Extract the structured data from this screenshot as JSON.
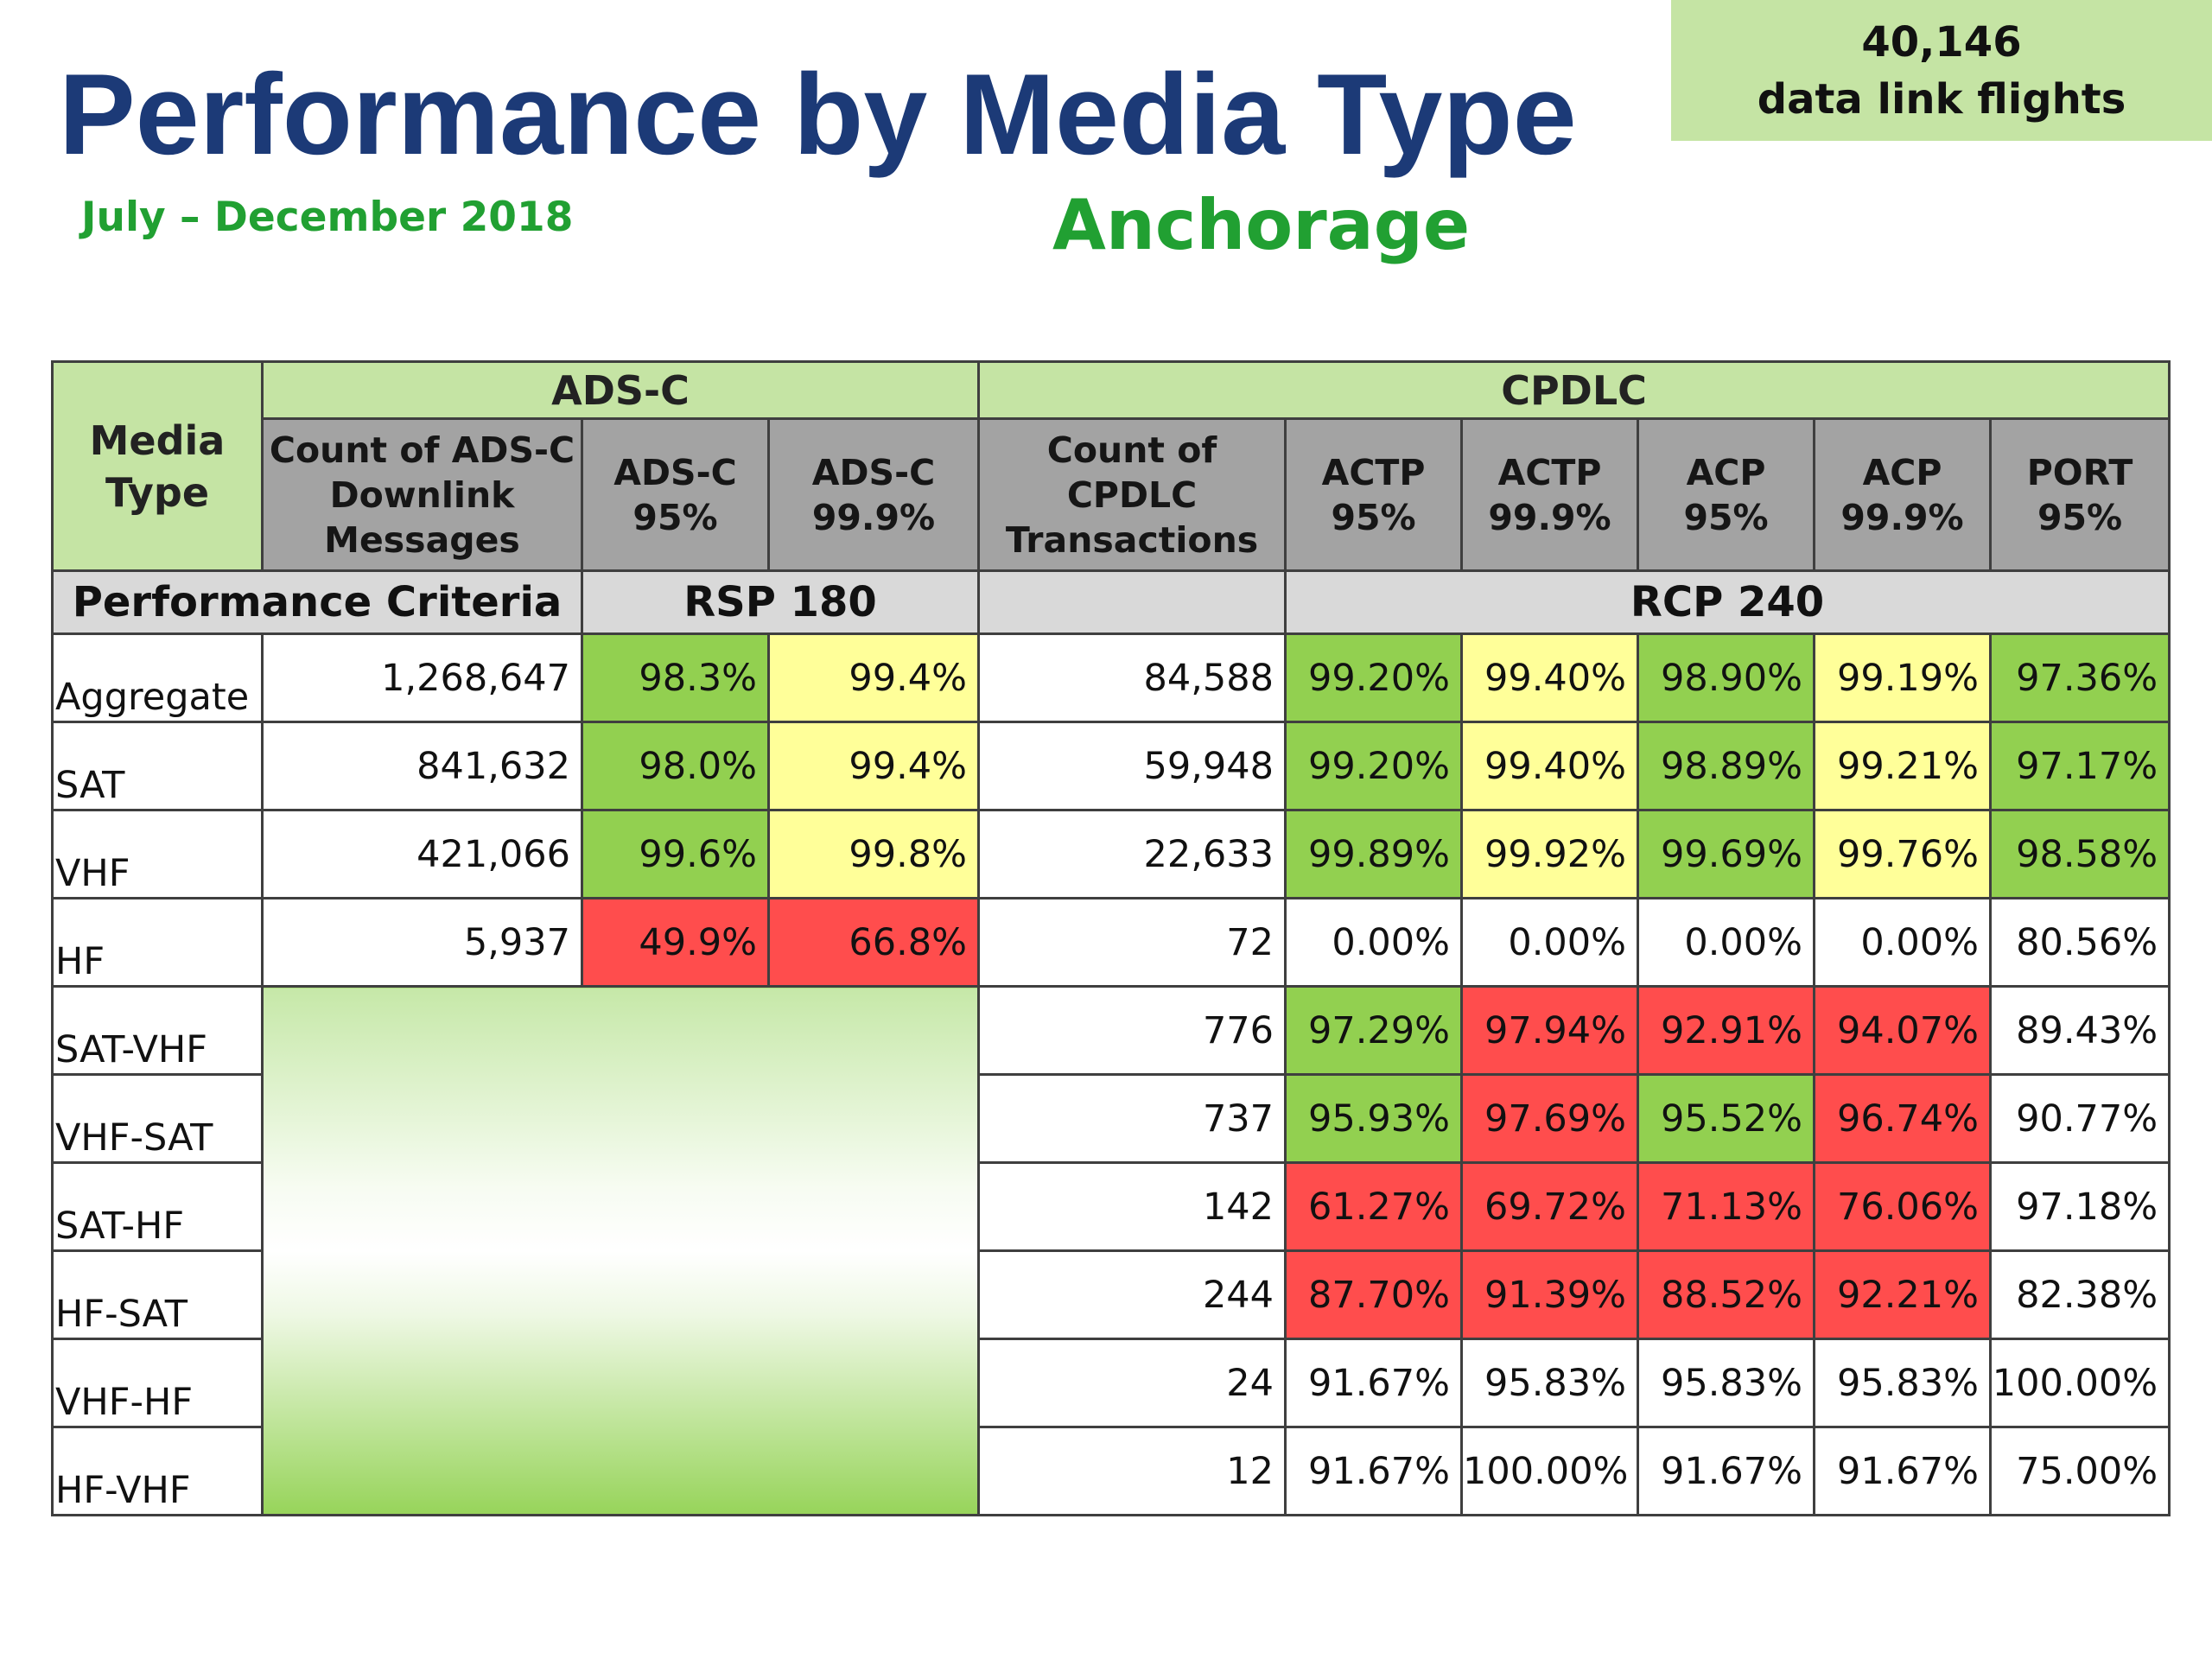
{
  "title": "Performance by Media Type",
  "date_range": "July – December 2018",
  "location": "Anchorage",
  "flights": {
    "count": "40,146",
    "label": "data link flights"
  },
  "table": {
    "media_type_header": "Media Type",
    "adsc_group": "ADS-C",
    "cpdlc_group": "CPDLC",
    "columns": {
      "adsc_count": [
        "Count of ADS-C",
        "Downlink",
        "Messages"
      ],
      "adsc_95": [
        "ADS-C",
        "95%"
      ],
      "adsc_999": [
        "ADS-C",
        "99.9%"
      ],
      "cpdlc_count": [
        "Count of CPDLC",
        "Transactions"
      ],
      "actp_95": [
        "ACTP",
        "95%"
      ],
      "actp_999": [
        "ACTP",
        "99.9%"
      ],
      "acp_95": [
        "ACP",
        "95%"
      ],
      "acp_999": [
        "ACP",
        "99.9%"
      ],
      "port_95": [
        "PORT",
        "95%"
      ]
    },
    "criteria_label": "Performance Criteria",
    "rsp_label": "RSP 180",
    "rcp_label": "RCP 240",
    "rows": [
      {
        "media": "Aggregate",
        "adsc_count": "1,268,647",
        "adsc_95": "98.3%",
        "adsc_999": "99.4%",
        "cpdlc_count": "84,588",
        "actp_95": "99.20%",
        "actp_999": "99.40%",
        "acp_95": "98.90%",
        "acp_999": "99.19%",
        "port_95": "97.36%"
      },
      {
        "media": "SAT",
        "adsc_count": "841,632",
        "adsc_95": "98.0%",
        "adsc_999": "99.4%",
        "cpdlc_count": "59,948",
        "actp_95": "99.20%",
        "actp_999": "99.40%",
        "acp_95": "98.89%",
        "acp_999": "99.21%",
        "port_95": "97.17%"
      },
      {
        "media": "VHF",
        "adsc_count": "421,066",
        "adsc_95": "99.6%",
        "adsc_999": "99.8%",
        "cpdlc_count": "22,633",
        "actp_95": "99.89%",
        "actp_999": "99.92%",
        "acp_95": "99.69%",
        "acp_999": "99.76%",
        "port_95": "98.58%"
      },
      {
        "media": "HF",
        "adsc_count": "5,937",
        "adsc_95": "49.9%",
        "adsc_999": "66.8%",
        "cpdlc_count": "72",
        "actp_95": "0.00%",
        "actp_999": "0.00%",
        "acp_95": "0.00%",
        "acp_999": "0.00%",
        "port_95": "80.56%"
      },
      {
        "media": "SAT-VHF",
        "cpdlc_count": "776",
        "actp_95": "97.29%",
        "actp_999": "97.94%",
        "acp_95": "92.91%",
        "acp_999": "94.07%",
        "port_95": "89.43%"
      },
      {
        "media": "VHF-SAT",
        "cpdlc_count": "737",
        "actp_95": "95.93%",
        "actp_999": "97.69%",
        "acp_95": "95.52%",
        "acp_999": "96.74%",
        "port_95": "90.77%"
      },
      {
        "media": "SAT-HF",
        "cpdlc_count": "142",
        "actp_95": "61.27%",
        "actp_999": "69.72%",
        "acp_95": "71.13%",
        "acp_999": "76.06%",
        "port_95": "97.18%"
      },
      {
        "media": "HF-SAT",
        "cpdlc_count": "244",
        "actp_95": "87.70%",
        "actp_999": "91.39%",
        "acp_95": "88.52%",
        "acp_999": "92.21%",
        "port_95": "82.38%"
      },
      {
        "media": "VHF-HF",
        "cpdlc_count": "24",
        "actp_95": "91.67%",
        "actp_999": "95.83%",
        "acp_95": "95.83%",
        "acp_999": "95.83%",
        "port_95": "100.00%"
      },
      {
        "media": "HF-VHF",
        "cpdlc_count": "12",
        "actp_95": "91.67%",
        "actp_999": "100.00%",
        "acp_95": "91.67%",
        "acp_999": "91.67%",
        "port_95": "75.00%"
      }
    ]
  },
  "colors": {
    "title": "#1c3a77",
    "subtitle_green": "#21a032",
    "header_green": "#c5e4a4",
    "header_gray": "#a3a3a3",
    "criteria_gray": "#d9d9d9",
    "meets": "#92d050",
    "marginal": "#ffff99",
    "fails": "#ff4d4d"
  }
}
